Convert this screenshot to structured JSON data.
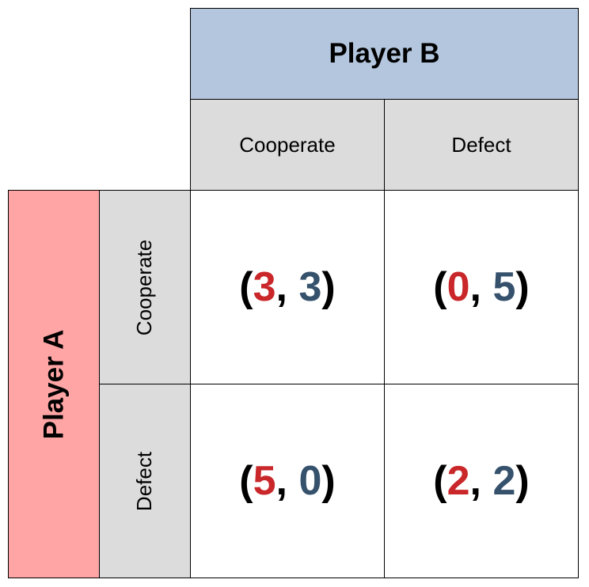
{
  "players": {
    "column_player": "Player B",
    "row_player": "Player A"
  },
  "strategies": {
    "columns": [
      "Cooperate",
      "Defect"
    ],
    "rows": [
      "Cooperate",
      "Defect"
    ]
  },
  "payoffs": [
    [
      {
        "a": "3",
        "b": "3"
      },
      {
        "a": "0",
        "b": "5"
      }
    ],
    [
      {
        "a": "5",
        "b": "0"
      },
      {
        "a": "2",
        "b": "2"
      }
    ]
  ],
  "punctuation": {
    "open": "(",
    "separator": ", ",
    "close": ")"
  },
  "colors": {
    "player_a_header": "#ffa5a5",
    "player_b_header": "#b3c6de",
    "strategy_header": "#dcdcdc",
    "player_a_payoff": "#c9272a",
    "player_b_payoff": "#35516c"
  }
}
